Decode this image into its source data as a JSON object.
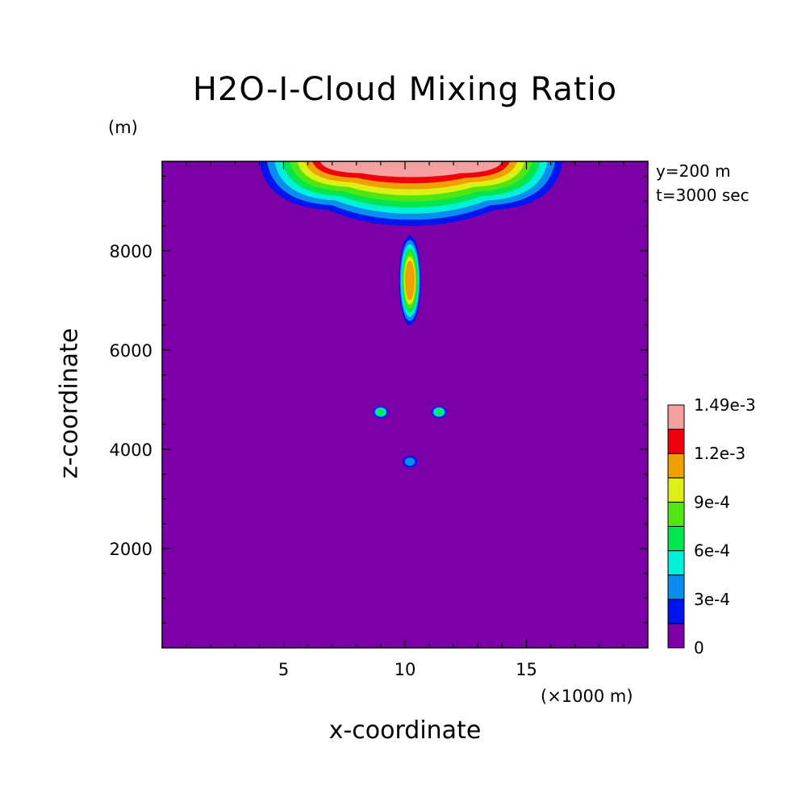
{
  "chart_data": {
    "type": "heatmap",
    "title": "H2O-I-Cloud Mixing Ratio",
    "xlabel": "x-coordinate",
    "ylabel": "z-coordinate",
    "x_unit": "(×1000 m)",
    "y_unit": "(m)",
    "annotations": [
      "y=200 m",
      "t=3000 sec"
    ],
    "xlim": [
      0,
      20
    ],
    "ylim": [
      0,
      9800
    ],
    "x_ticks": [
      5,
      10,
      15
    ],
    "y_ticks": [
      2000,
      4000,
      6000,
      8000
    ],
    "colorbar": {
      "levels": [
        0,
        0.00015,
        0.0003,
        0.00045,
        0.0006,
        0.00075,
        0.0009,
        0.00105,
        0.0012,
        0.00135,
        0.00149
      ],
      "labels": [
        "0",
        "3e-4",
        "6e-4",
        "9e-4",
        "1.2e-3",
        "1.49e-3"
      ],
      "colors": [
        "#7b00a8",
        "#0014f0",
        "#0a8cf0",
        "#00f0dc",
        "#00e650",
        "#50e614",
        "#dcf014",
        "#f0a000",
        "#f0000a",
        "#f4a0a0"
      ]
    },
    "background_value": 0,
    "features": [
      {
        "name": "cloud-top-layer",
        "x_range": [
          4,
          16.5
        ],
        "z_range": [
          8500,
          9800
        ],
        "max_value": 0.00135
      },
      {
        "name": "central-column",
        "x": 10.2,
        "z_range": [
          6500,
          8300
        ],
        "max_value": 0.00105
      },
      {
        "name": "left-cell",
        "x": 9.0,
        "z": 4750,
        "max_value": 0.0006
      },
      {
        "name": "right-cell",
        "x": 11.4,
        "z": 4750,
        "max_value": 0.0006
      },
      {
        "name": "lower-cell",
        "x": 10.2,
        "z": 3750,
        "max_value": 0.0003
      }
    ]
  }
}
